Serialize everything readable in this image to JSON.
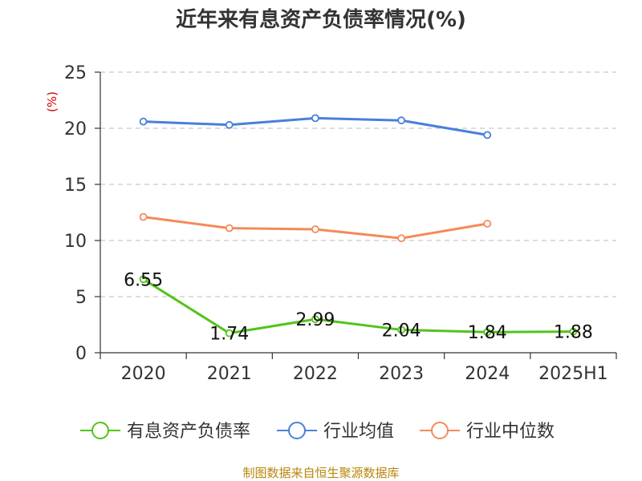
{
  "chart_data": {
    "type": "line",
    "title": "近年来有息资产负债率情况(%)",
    "ylabel": "(%)",
    "xlabel": "",
    "categories": [
      "2020",
      "2021",
      "2022",
      "2023",
      "2024",
      "2025H1"
    ],
    "ylim": [
      0,
      25
    ],
    "yticks": [
      0,
      5,
      10,
      15,
      20,
      25
    ],
    "grid": true,
    "legend_position": "bottom",
    "series": [
      {
        "name": "有息资产负债率",
        "color": "#52c41a",
        "values": [
          6.55,
          1.74,
          2.99,
          2.04,
          1.84,
          1.88
        ],
        "labels": [
          "6.55",
          "1.74",
          "2.99",
          "2.04",
          "1.84",
          "1.88"
        ]
      },
      {
        "name": "行业均值",
        "color": "#4a7fdb",
        "values": [
          20.6,
          20.3,
          20.9,
          20.7,
          19.4,
          null
        ]
      },
      {
        "name": "行业中位数",
        "color": "#f5895a",
        "values": [
          12.1,
          11.1,
          11.0,
          10.2,
          11.5,
          null
        ]
      }
    ],
    "source": "制图数据来自恒生聚源数据库",
    "colors": {
      "ylabel": "#cc0000",
      "source": "#b8860b",
      "grid": "#bbbbbb",
      "axis": "#333333"
    }
  }
}
